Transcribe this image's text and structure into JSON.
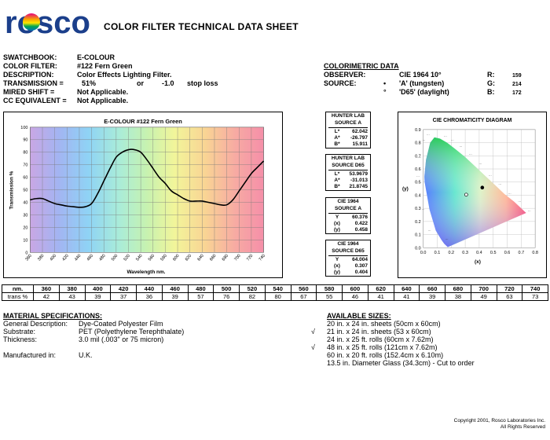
{
  "header": {
    "brand": "rosco",
    "title": "COLOR FILTER TECHNICAL DATA SHEET"
  },
  "info": [
    {
      "label": "SWATCHBOOK:",
      "value": "E-COLOUR"
    },
    {
      "label": "COLOR FILTER:",
      "value": "#122 Fern Green"
    },
    {
      "label": "DESCRIPTION:",
      "value": "Color Effects Lighting Filter."
    },
    {
      "label": "TRANSMISSION =",
      "value": "51%",
      "or": "or",
      "loss": "-1.0",
      "loss_label": "stop loss"
    },
    {
      "label": "MIRED SHIFT =",
      "value": "Not Applicable."
    },
    {
      "label": "CC EQUIVALENT =",
      "value": "Not Applicable."
    }
  ],
  "colorimetric": {
    "heading": "COLORIMETRIC DATA",
    "observer_label": "OBSERVER:",
    "observer_value": "CIE 1964 10°",
    "source_label": "SOURCE:",
    "source_a_bullet": "•",
    "source_a": "'A' (tungsten)",
    "source_d_bullet": "°",
    "source_d": "'D65' (daylight)",
    "r_label": "R:",
    "r_value": "159",
    "g_label": "G:",
    "g_value": "214",
    "b_label": "B:",
    "b_value": "172"
  },
  "boxes": [
    {
      "title1": "HUNTER LAB",
      "title2": "SOURCE A",
      "rows": [
        [
          "L*",
          "62.042"
        ],
        [
          "A*",
          "-26.797"
        ],
        [
          "B*",
          "15.911"
        ]
      ]
    },
    {
      "title1": "HUNTER LAB",
      "title2": "SOURCE D65",
      "rows": [
        [
          "L*",
          "53.9679"
        ],
        [
          "A*",
          "-31.013"
        ],
        [
          "B*",
          "21.8745"
        ]
      ]
    },
    {
      "title1": "CIE 1964",
      "title2": "SOURCE A",
      "rows": [
        [
          "Y",
          "60.376"
        ],
        [
          "(x)",
          "0.422"
        ],
        [
          "(y)",
          "0.458"
        ]
      ]
    },
    {
      "title1": "CIE 1964",
      "title2": "SOURCE D65",
      "rows": [
        [
          "Y",
          "64.004"
        ],
        [
          "(x)",
          "0.307"
        ],
        [
          "(y)",
          "0.404"
        ]
      ]
    }
  ],
  "chart_data": [
    {
      "type": "line",
      "title": "E-COLOUR #122 Fern Green",
      "xlabel": "Wavelength nm.",
      "ylabel": "Transmission %",
      "xlim": [
        360,
        740
      ],
      "ylim": [
        0,
        100
      ],
      "x_ticks": [
        360,
        380,
        400,
        420,
        440,
        460,
        480,
        500,
        520,
        540,
        560,
        580,
        600,
        620,
        640,
        660,
        680,
        700,
        720,
        740
      ],
      "y_ticks": [
        0,
        10,
        20,
        30,
        40,
        50,
        60,
        70,
        80,
        90,
        100
      ],
      "grid": true,
      "series": [
        {
          "color": "#000000",
          "x": [
            360,
            370,
            380,
            390,
            400,
            410,
            420,
            430,
            440,
            450,
            460,
            470,
            480,
            490,
            500,
            510,
            520,
            530,
            540,
            550,
            560,
            570,
            580,
            590,
            600,
            610,
            620,
            630,
            640,
            650,
            660,
            670,
            680,
            690,
            700,
            710,
            720,
            730,
            740
          ],
          "y": [
            42,
            43,
            43,
            41,
            39,
            38,
            37,
            36.5,
            36,
            36.5,
            39,
            47,
            57,
            67,
            76,
            80,
            82,
            82,
            80,
            74,
            67,
            60,
            55,
            49,
            46,
            43,
            41,
            41,
            41,
            40,
            39,
            38,
            38,
            42,
            49,
            56,
            63,
            68,
            73
          ]
        }
      ]
    },
    {
      "type": "scatter",
      "title": "CIE CHROMATICITY DIAGRAM",
      "xlabel": "(x)",
      "ylabel": "(y)",
      "xlim": [
        0,
        0.8
      ],
      "ylim": [
        0,
        0.9
      ],
      "x_ticks": [
        "0.0",
        "0.1",
        "0.2",
        "0.3",
        "0.4",
        "0.5",
        "0.6",
        "0.7",
        "0.8"
      ],
      "y_ticks": [
        "0.0",
        "0.1",
        "0.2",
        "0.3",
        "0.4",
        "0.5",
        "0.6",
        "0.7",
        "0.8",
        "0.9"
      ],
      "points": [
        {
          "x": 0.422,
          "y": 0.458,
          "marker": "filled"
        },
        {
          "x": 0.307,
          "y": 0.404,
          "marker": "open"
        }
      ]
    }
  ],
  "table": {
    "row1_label": "nm.",
    "row2_label": "trans %",
    "nm": [
      "360",
      "380",
      "400",
      "420",
      "440",
      "460",
      "480",
      "500",
      "520",
      "540",
      "560",
      "580",
      "600",
      "620",
      "640",
      "660",
      "680",
      "700",
      "720",
      "740"
    ],
    "trans": [
      "42",
      "43",
      "39",
      "37",
      "36",
      "39",
      "57",
      "76",
      "82",
      "80",
      "67",
      "55",
      "46",
      "41",
      "41",
      "39",
      "38",
      "49",
      "63",
      "73"
    ]
  },
  "material": {
    "heading": "MATERIAL SPECIFICATIONS:",
    "rows": [
      {
        "label": "General Description:",
        "value": "Dye-Coated Polyester Film"
      },
      {
        "label": "Substrate:",
        "value": "PET (Polyethylene Terephthalate)"
      },
      {
        "label": "Thickness:",
        "value": "3.0 mil (.003\" or 75 micron)"
      }
    ],
    "manufactured_label": "Manufactured in:",
    "manufactured_value": "U.K."
  },
  "sizes": {
    "heading": "AVAILABLE SIZES:",
    "items": [
      {
        "check": "",
        "text": "20 in. x 24 in. sheets (50cm x 60cm)"
      },
      {
        "check": "√",
        "text": "21 in. x 24 in. sheets (53 x 60cm)"
      },
      {
        "check": "",
        "text": "24 in. x 25 ft. rolls (60cm x 7.62m)"
      },
      {
        "check": "√",
        "text": "48 in. x 25 ft. rolls (121cm x 7.62m)"
      },
      {
        "check": "",
        "text": "60 in. x 20 ft. rolls (152.4cm x 6.10m)"
      },
      {
        "check": "",
        "text": "13.5 in. Diameter Glass (34.3cm) - Cut to order"
      }
    ]
  },
  "copyright": {
    "line1": "Copyright 2001, Rosco Laboratories Inc.",
    "line2": "All Rights Reserved"
  }
}
